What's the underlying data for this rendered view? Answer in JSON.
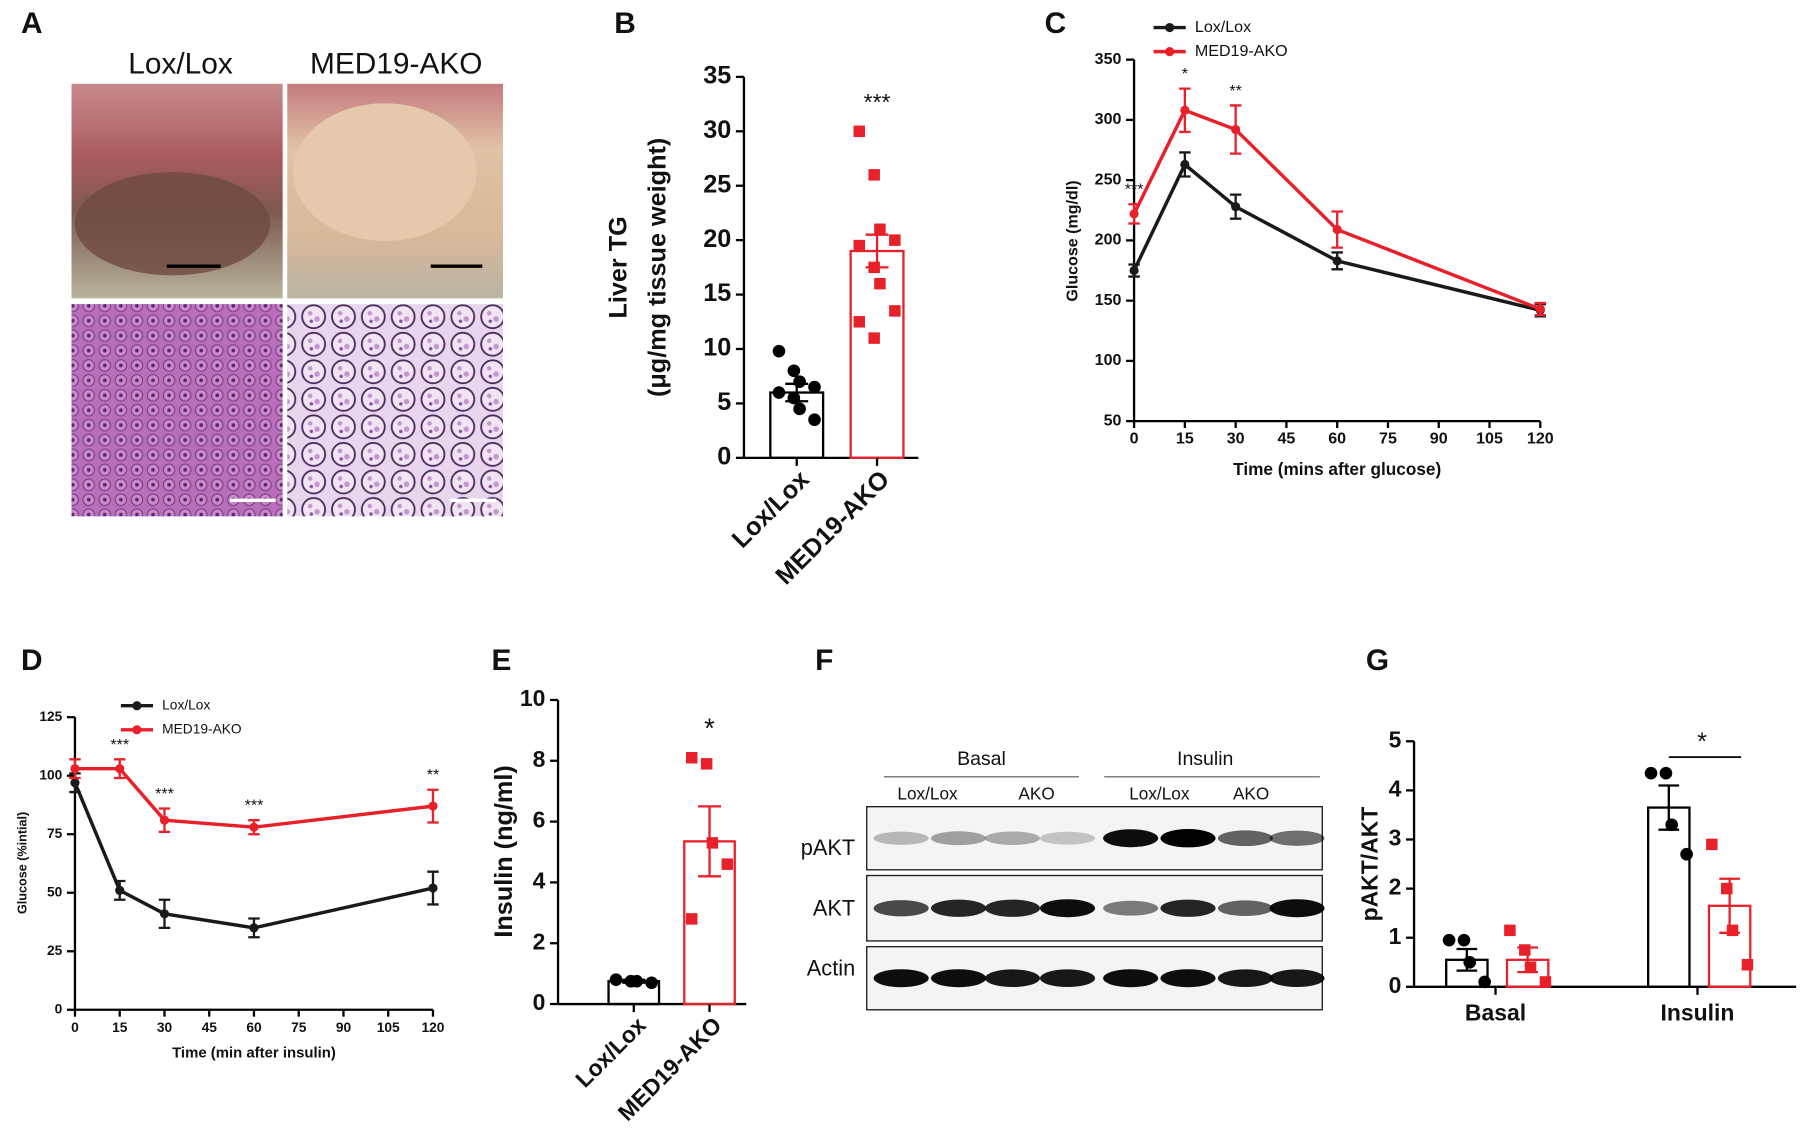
{
  "images": {
    "panel_label": "A",
    "columns": [
      "Lox/Lox",
      "MED19-AKO"
    ]
  },
  "blot": {
    "panel_label": "F",
    "groups": [
      "Basal",
      "Insulin"
    ],
    "lanes": [
      "Lox/Lox",
      "AKO",
      "Lox/Lox",
      "AKO"
    ],
    "rows": [
      "pAKT",
      "AKT",
      "Actin"
    ]
  },
  "chart_data": [
    {
      "type": "bar",
      "panel_label": "B",
      "ylabel": [
        "Liver TG",
        "(μg/mg tissue weight)"
      ],
      "categories": [
        "Lox/Lox",
        "MED19-AKO"
      ],
      "values": [
        6.0,
        19.0
      ],
      "errors": [
        0.8,
        1.5
      ],
      "colors": [
        "#000000",
        "#e8202a"
      ],
      "points": [
        [
          9.8,
          8.0,
          7.0,
          6.5,
          6.0,
          5.5,
          4.5,
          3.5
        ],
        [
          30.0,
          26.0,
          21.0,
          20.0,
          19.5,
          17.5,
          16.0,
          13.5,
          12.5,
          11.0
        ]
      ],
      "significance": [
        null,
        "***"
      ],
      "ylim": [
        0,
        35
      ],
      "yticks": [
        0,
        5,
        10,
        15,
        20,
        25,
        30,
        35
      ]
    },
    {
      "type": "line",
      "panel_label": "C",
      "xlabel": "Time (mins after glucose)",
      "ylabel": "Glucose (mg/dl)",
      "x": [
        0,
        15,
        30,
        60,
        120
      ],
      "series": [
        {
          "name": "Lox/Lox",
          "color": "#1a1a1a",
          "values": [
            175,
            263,
            228,
            183,
            142
          ],
          "errors": [
            5,
            10,
            10,
            7,
            5
          ]
        },
        {
          "name": "MED19-AKO",
          "color": "#e8202a",
          "values": [
            222,
            308,
            292,
            209,
            143
          ],
          "errors": [
            8,
            18,
            20,
            15,
            5
          ]
        }
      ],
      "significance": [
        "***",
        "*",
        "**",
        null,
        null
      ],
      "legend": "upper left",
      "xlim": [
        0,
        120
      ],
      "xticks": [
        0,
        15,
        30,
        45,
        60,
        75,
        90,
        105,
        120
      ],
      "ylim": [
        50,
        350
      ],
      "yticks": [
        50,
        100,
        150,
        200,
        250,
        300,
        350
      ]
    },
    {
      "type": "line",
      "panel_label": "D",
      "xlabel": "Time (min after insulin)",
      "ylabel": "Glucose (%intial)",
      "x": [
        0,
        15,
        30,
        60,
        120
      ],
      "series": [
        {
          "name": "Lox/Lox",
          "color": "#1a1a1a",
          "values": [
            97,
            51,
            41,
            35,
            52
          ],
          "errors": [
            4,
            4,
            6,
            4,
            7
          ]
        },
        {
          "name": "MED19-AKO",
          "color": "#e8202a",
          "values": [
            103,
            103,
            81,
            78,
            87
          ],
          "errors": [
            4,
            4,
            5,
            3,
            7
          ]
        }
      ],
      "significance": [
        null,
        "***",
        "***",
        "***",
        "**"
      ],
      "legend": "upper left",
      "xlim": [
        0,
        120
      ],
      "xticks": [
        0,
        15,
        30,
        45,
        60,
        75,
        90,
        105,
        120
      ],
      "ylim": [
        0,
        125
      ],
      "yticks": [
        0,
        25,
        50,
        75,
        100,
        125
      ]
    },
    {
      "type": "bar",
      "panel_label": "E",
      "ylabel": "Insulin (ng/ml)",
      "categories": [
        "Lox/Lox",
        "MED19-AKO"
      ],
      "values": [
        0.75,
        5.35
      ],
      "errors": [
        0.05,
        1.15
      ],
      "colors": [
        "#000000",
        "#e8202a"
      ],
      "points": [
        [
          0.8,
          0.75,
          0.75,
          0.7
        ],
        [
          8.1,
          7.9,
          5.3,
          4.6,
          2.8
        ]
      ],
      "significance": [
        null,
        "*"
      ],
      "ylim": [
        0,
        10
      ],
      "yticks": [
        0,
        2,
        4,
        6,
        8,
        10
      ]
    },
    {
      "type": "grouped_bar",
      "panel_label": "G",
      "ylabel": "pAKT/AKT",
      "categories": [
        "Basal",
        "Insulin"
      ],
      "series": [
        {
          "color": "#000000",
          "values": [
            0.55,
            3.65
          ],
          "errors": [
            0.22,
            0.45
          ],
          "points": [
            [
              0.95,
              0.95,
              0.5,
              0.1
            ],
            [
              4.35,
              4.35,
              3.3,
              2.7
            ]
          ]
        },
        {
          "color": "#e8202a",
          "values": [
            0.55,
            1.65
          ],
          "errors": [
            0.25,
            0.55
          ],
          "points": [
            [
              1.15,
              0.75,
              0.4,
              0.1
            ],
            [
              2.9,
              2.0,
              1.15,
              0.45
            ]
          ]
        }
      ],
      "significance": [
        null,
        "*"
      ],
      "ylim": [
        0,
        5
      ],
      "yticks": [
        0,
        1,
        2,
        3,
        4,
        5
      ]
    }
  ]
}
